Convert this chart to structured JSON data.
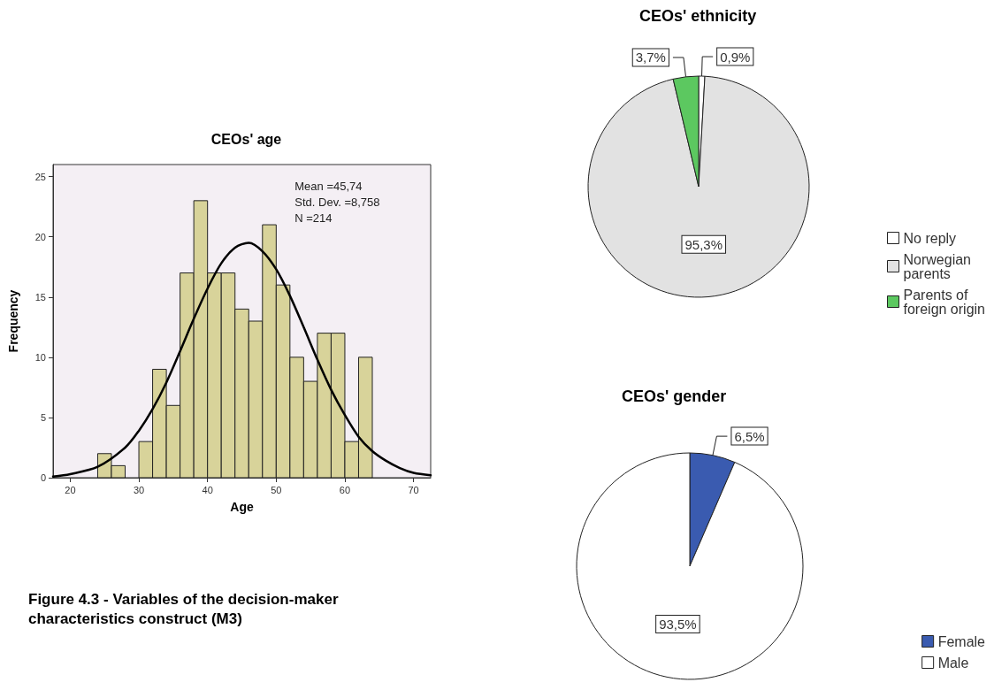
{
  "chart_data": [
    {
      "type": "histogram",
      "title": "CEOs' age",
      "xlabel": "Age",
      "ylabel": "Frequency",
      "xlim": [
        17.5,
        72.5
      ],
      "xticks": [
        20,
        30,
        40,
        50,
        60,
        70
      ],
      "ylim": [
        0,
        26
      ],
      "yticks": [
        0,
        5,
        10,
        15,
        20,
        25
      ],
      "grid": false,
      "series": [
        {
          "type": "histogram",
          "color": "#d8d39a",
          "bins": [
            24,
            26,
            28,
            30,
            32,
            34,
            36,
            38,
            40,
            42,
            44,
            46,
            48,
            50,
            52,
            54,
            56,
            58,
            60,
            62,
            64
          ],
          "values": [
            2,
            1,
            0,
            3,
            9,
            6,
            17,
            23,
            17,
            17,
            14,
            13,
            21,
            16,
            10,
            8,
            12,
            12,
            3,
            10
          ]
        },
        {
          "type": "line",
          "color": "#000000",
          "x": [
            17.5,
            20,
            24,
            28,
            30,
            32,
            34,
            36,
            38,
            40,
            42,
            44,
            46,
            48,
            50,
            52,
            54,
            56,
            58,
            60,
            62,
            64,
            66,
            68,
            70,
            72.5
          ],
          "values": [
            0.1,
            0.3,
            0.9,
            2.5,
            3.9,
            5.7,
            7.9,
            10.5,
            13.2,
            15.7,
            17.8,
            19.1,
            19.5,
            18.8,
            17.3,
            15.1,
            12.5,
            9.8,
            7.3,
            5.2,
            3.4,
            2.2,
            1.4,
            0.8,
            0.4,
            0.2
          ]
        }
      ],
      "annotations": [
        "Mean =45,74",
        "Std. Dev. =8,758",
        "N =214",
        "Figure 4.3 - Variables of the decision-maker characteristics construct (M3)"
      ]
    },
    {
      "type": "pie",
      "title": "CEOs' ethnicity",
      "categories": [
        "No reply",
        "Norwegian parents",
        "Parents of foreign origin"
      ],
      "values": [
        0.9,
        95.3,
        3.7
      ],
      "colors": [
        "#ffffff",
        "#e2e2e2",
        "#5cc860"
      ],
      "value_labels": [
        "0,9%",
        "95,3%",
        "3,7%"
      ],
      "legend": "bottom right"
    },
    {
      "type": "pie",
      "title": "CEOs' gender",
      "categories": [
        "Female",
        "Male"
      ],
      "values": [
        6.5,
        93.5
      ],
      "colors": [
        "#3a5bb0",
        "#ffffff"
      ],
      "value_labels": [
        "6,5%",
        "93,5%"
      ],
      "legend": "bottom right"
    }
  ]
}
